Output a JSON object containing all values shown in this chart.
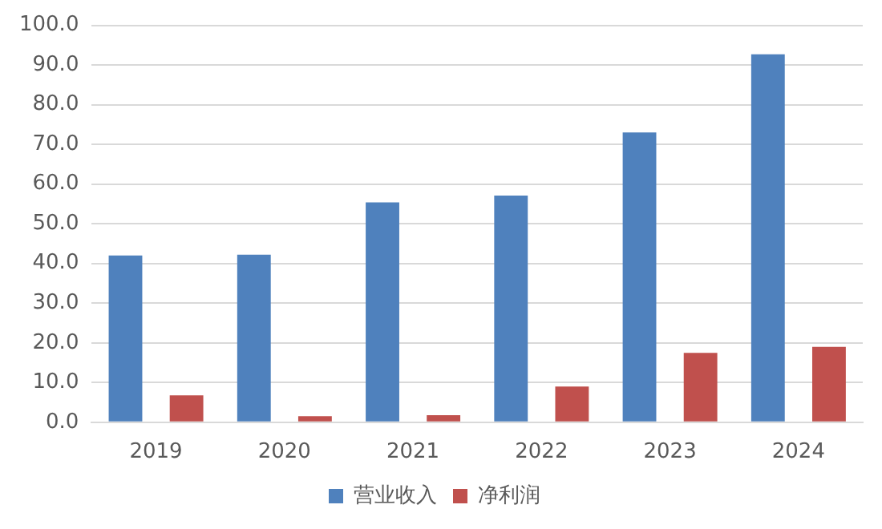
{
  "chart_data": {
    "type": "bar",
    "categories": [
      "2019",
      "2020",
      "2021",
      "2022",
      "2023",
      "2024"
    ],
    "series": [
      {
        "name": "营业收入",
        "color": "#4f81bd",
        "values": [
          42.0,
          42.2,
          55.4,
          57.1,
          73.0,
          92.7
        ]
      },
      {
        "name": "净利润",
        "color": "#c0504d",
        "values": [
          6.8,
          1.5,
          1.8,
          9.0,
          17.5,
          19.0
        ]
      }
    ],
    "ylim": [
      0,
      100
    ],
    "yticks": [
      {
        "value": 0,
        "label": "0.0"
      },
      {
        "value": 10,
        "label": "10.0"
      },
      {
        "value": 20,
        "label": "20.0"
      },
      {
        "value": 30,
        "label": "30.0"
      },
      {
        "value": 40,
        "label": "40.0"
      },
      {
        "value": 50,
        "label": "50.0"
      },
      {
        "value": 60,
        "label": "60.0"
      },
      {
        "value": 70,
        "label": "70.0"
      },
      {
        "value": 80,
        "label": "80.0"
      },
      {
        "value": 90,
        "label": "90.0"
      },
      {
        "value": 100,
        "label": "100.0"
      }
    ],
    "grid": "y",
    "legend": "bottom"
  }
}
